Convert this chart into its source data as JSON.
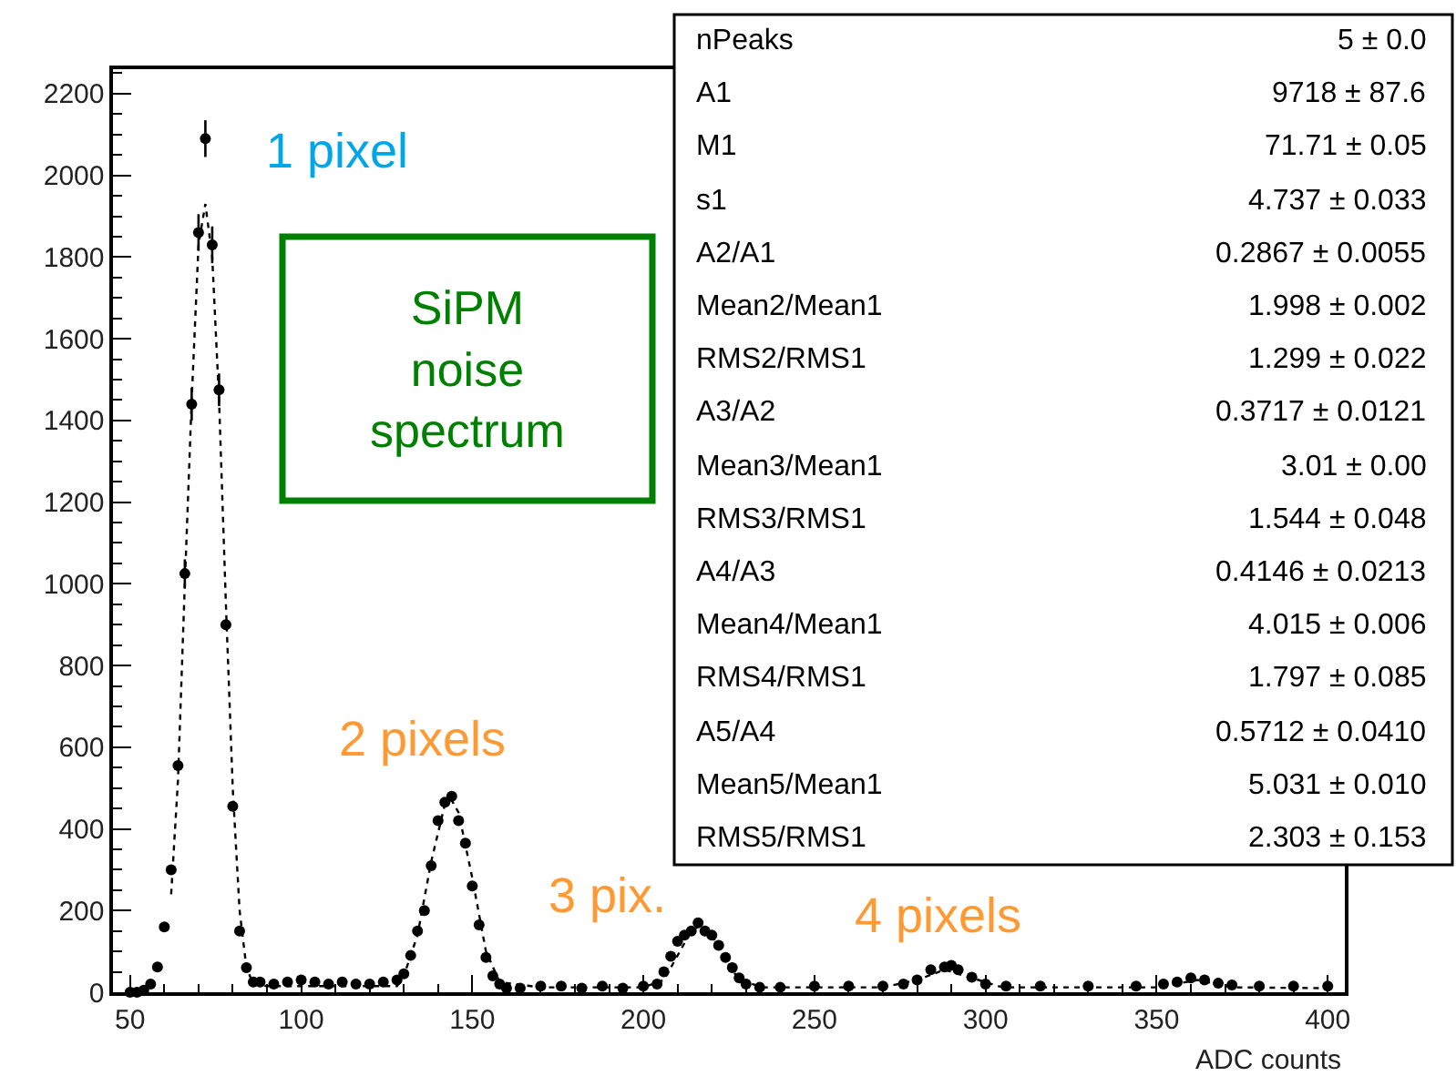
{
  "chart_data": {
    "type": "scatter",
    "xlabel": "ADC counts",
    "x": [
      50,
      52,
      54,
      56,
      58,
      60,
      62,
      64,
      66,
      68,
      70,
      72,
      74,
      76,
      78,
      80,
      82,
      84,
      86,
      88,
      92,
      96,
      100,
      104,
      108,
      112,
      116,
      120,
      124,
      128,
      130,
      132,
      134,
      136,
      138,
      140,
      142,
      144,
      146,
      148,
      150,
      152,
      154,
      156,
      158,
      160,
      164,
      170,
      176,
      182,
      188,
      194,
      200,
      204,
      206,
      208,
      210,
      212,
      214,
      216,
      218,
      220,
      222,
      224,
      226,
      228,
      230,
      234,
      240,
      250,
      260,
      270,
      276,
      280,
      284,
      288,
      290,
      292,
      296,
      300,
      306,
      316,
      330,
      344,
      352,
      356,
      360,
      364,
      368,
      372,
      380,
      390,
      400
    ],
    "series": [
      {
        "color": "#000000",
        "marker": "circle",
        "values": [
          0,
          0,
          5,
          20,
          62,
          160,
          300,
          555,
          1025,
          1440,
          1860,
          2090,
          1830,
          1475,
          900,
          455,
          150,
          60,
          25,
          25,
          20,
          25,
          30,
          25,
          20,
          25,
          20,
          20,
          25,
          30,
          45,
          90,
          150,
          200,
          310,
          420,
          465,
          480,
          420,
          365,
          260,
          165,
          85,
          40,
          20,
          10,
          10,
          15,
          15,
          10,
          15,
          10,
          15,
          20,
          50,
          88,
          125,
          140,
          150,
          170,
          150,
          140,
          115,
          85,
          60,
          35,
          20,
          12,
          12,
          15,
          15,
          15,
          20,
          30,
          55,
          62,
          66,
          55,
          37,
          20,
          15,
          15,
          15,
          15,
          20,
          25,
          35,
          30,
          22,
          18,
          15,
          15,
          15
        ],
        "errors": [
          null,
          null,
          null,
          null,
          null,
          null,
          null,
          null,
          35,
          40,
          45,
          45,
          45,
          40,
          null,
          null,
          null,
          null,
          null,
          null,
          null,
          null,
          null,
          null,
          null,
          null,
          null,
          null,
          null,
          null,
          null,
          null,
          null,
          null,
          null,
          null,
          null,
          null,
          null,
          null,
          null,
          null,
          null,
          null,
          null,
          null,
          null,
          null,
          null,
          null,
          null,
          null,
          null,
          null,
          null,
          null,
          null,
          null,
          null,
          null,
          null,
          null,
          null,
          null,
          null,
          null,
          null,
          null,
          null,
          null,
          null,
          null,
          null,
          null,
          null,
          null,
          null,
          null,
          null,
          null,
          null,
          null,
          null,
          null,
          null,
          null,
          null,
          null,
          null,
          null,
          null,
          null,
          null
        ]
      },
      {
        "type": "line",
        "color": "#000000",
        "marker": "none",
        "line_style": "dotted",
        "x": [
          62,
          64,
          66,
          68,
          70,
          72,
          74,
          76,
          78,
          80,
          82,
          84,
          86,
          90,
          128,
          130,
          134,
          138,
          142,
          144,
          146,
          150,
          154,
          158,
          170,
          200,
          206,
          210,
          214,
          216,
          220,
          224,
          228,
          235,
          270,
          280,
          288,
          296,
          305,
          350,
          362,
          372,
          400
        ],
        "values": [
          240,
          520,
          1000,
          1450,
          1830,
          1930,
          1800,
          1450,
          950,
          500,
          200,
          60,
          20,
          15,
          15,
          40,
          140,
          320,
          460,
          470,
          440,
          280,
          100,
          25,
          12,
          12,
          30,
          90,
          150,
          160,
          140,
          80,
          30,
          12,
          12,
          30,
          55,
          35,
          12,
          12,
          30,
          12,
          10
        ]
      }
    ],
    "xlim": [
      45,
      405
    ],
    "xticks": [
      50,
      100,
      150,
      200,
      250,
      300,
      350,
      400
    ],
    "ylim": [
      0,
      2260
    ],
    "yticks": [
      0,
      200,
      400,
      600,
      800,
      1000,
      1200,
      1400,
      1600,
      1800,
      2000,
      2200
    ],
    "annotations": [
      "SiPM\nnoise\nspectrum",
      "nPeaks",
      "5 ± 0.0",
      "A1",
      "9718 ± 87.6",
      "M1",
      "71.71 ± 0.05",
      "s1",
      "4.737 ± 0.033",
      "A2/A1",
      "0.2867 ± 0.0055",
      "Mean2/Mean1",
      "1.998 ± 0.002",
      "RMS2/RMS1",
      "1.299 ± 0.022",
      "A3/A2",
      "0.3717 ± 0.0121",
      "Mean3/Mean1",
      "3.01 ± 0.00",
      "RMS3/RMS1",
      "1.544 ± 0.048",
      "A4/A3",
      "0.4146 ± 0.0213",
      "Mean4/Mean1",
      "4.015 ± 0.006",
      "RMS4/RMS1",
      "1.797 ± 0.085",
      "A5/A4",
      "0.5712 ± 0.0410",
      "Mean5/Mean1",
      "5.031 ± 0.010",
      "RMS5/RMS1",
      "2.303 ± 0.153",
      "1 pixel",
      "2 pixels",
      "3 pix.",
      "4 pixels"
    ]
  }
}
